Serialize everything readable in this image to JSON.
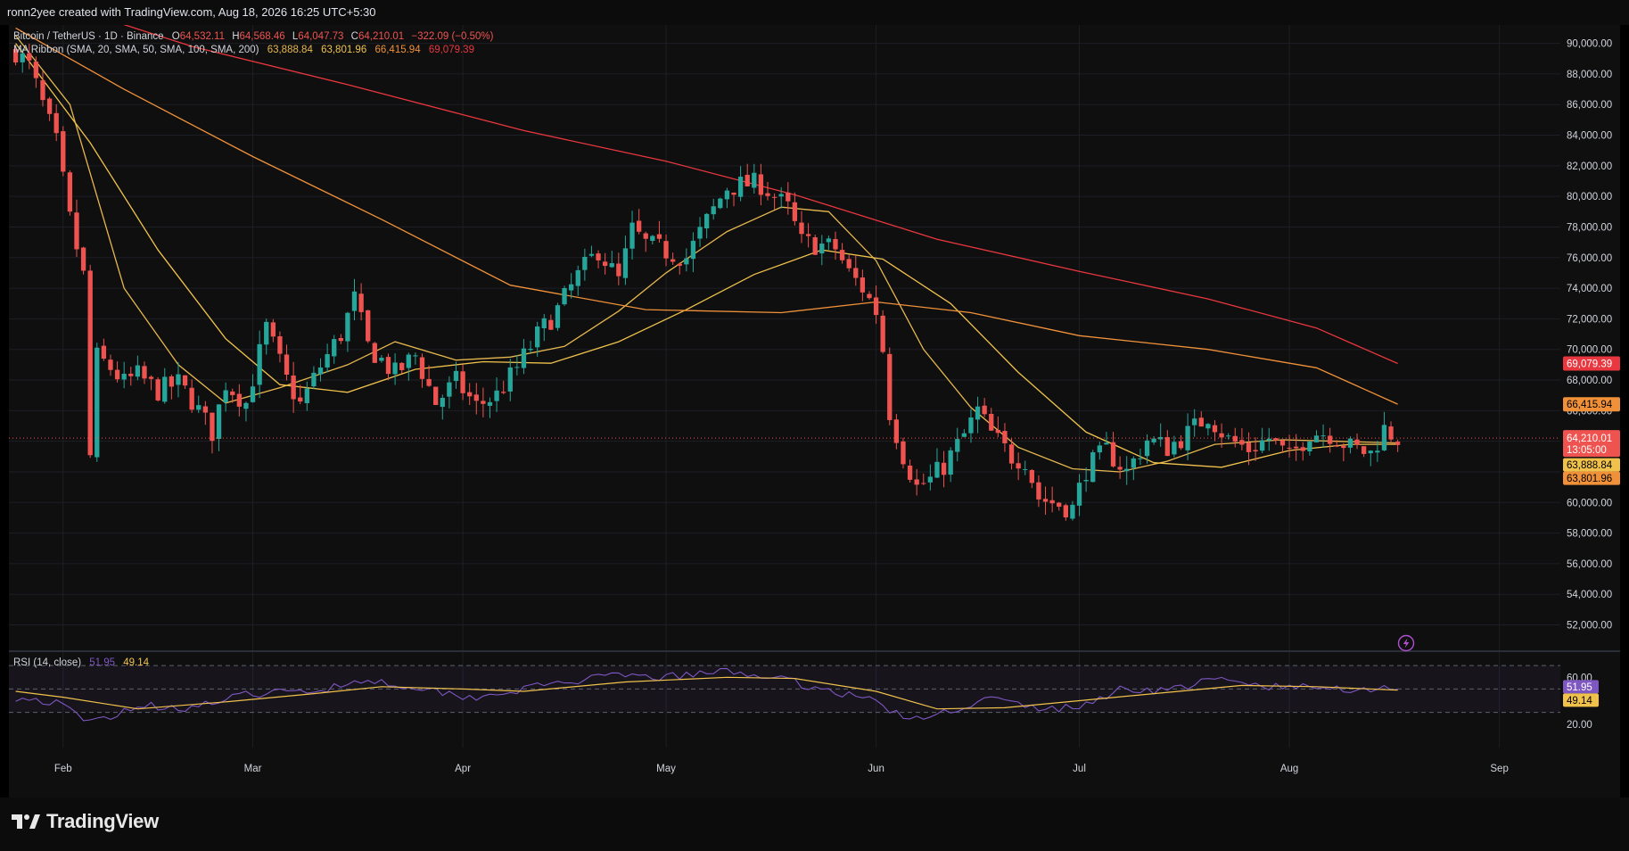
{
  "header": {
    "caption": "ronn2yee created with TradingView.com, Aug 18, 2026 16:25 UTC+5:30"
  },
  "footer": {
    "brand": "TradingView"
  },
  "colors": {
    "up": "#26a69a",
    "down": "#ef5350",
    "ma20": "#e6b74e",
    "ma50": "#f0c24c",
    "ma100": "#f0913a",
    "ma200": "#e8373e",
    "rsi": "#7e57c2",
    "rsi_ma": "#f0c24c",
    "background": "#0f0f0f"
  },
  "legend": {
    "symbol": "Bitcoin / TetherUS · 1D · Binance",
    "o_label": "O",
    "o": "64,532.11",
    "h_label": "H",
    "h": "64,568.46",
    "l_label": "L",
    "l": "64,047.73",
    "c_label": "C",
    "c": "64,210.01",
    "change": "−322.09 (−0.50%)",
    "ma_name": "MA Ribbon (SMA, 20, SMA, 50, SMA, 100, SMA, 200)",
    "ma20": "63,888.84",
    "ma50": "63,801.96",
    "ma100": "66,415.94",
    "ma200": "69,079.39"
  },
  "rsi_legend": {
    "name": "RSI (14, close)",
    "value": "51.95",
    "ma": "49.14"
  },
  "price_badges": {
    "ma200": "69,079.39",
    "ma100": "66,415.94",
    "last": "64,210.01",
    "countdown": "13:05:00",
    "ma20": "63,888.84",
    "ma50": "63,801.96"
  },
  "rsi_badges": {
    "rsi": "51.95",
    "ma": "49.14"
  },
  "chart_data": {
    "type": "candlestick",
    "symbol": "Bitcoin / TetherUS",
    "interval": "1D",
    "exchange": "Binance",
    "y_axis": {
      "ticks": [
        "90,000.00",
        "88,000.00",
        "86,000.00",
        "84,000.00",
        "82,000.00",
        "80,000.00",
        "78,000.00",
        "76,000.00",
        "74,000.00",
        "72,000.00",
        "70,000.00",
        "68,000.00",
        "66,000.00",
        "64,000.00",
        "62,000.00",
        "60,000.00",
        "58,000.00",
        "56,000.00",
        "54,000.00",
        "52,000.00"
      ],
      "range": [
        50400,
        91200
      ]
    },
    "x_axis": {
      "ticks": [
        "Feb",
        "Mar",
        "Apr",
        "May",
        "Jun",
        "Jul",
        "Aug",
        "Sep"
      ]
    },
    "price_close_trend": [
      [
        "2026-01-25",
        89500
      ],
      [
        "2026-01-27",
        88500
      ],
      [
        "2026-01-29",
        86000
      ],
      [
        "2026-01-31",
        83500
      ],
      [
        "2026-02-02",
        78500
      ],
      [
        "2026-02-04",
        74800
      ],
      [
        "2026-02-05",
        63000
      ],
      [
        "2026-02-06",
        69500
      ],
      [
        "2026-02-08",
        68800
      ],
      [
        "2026-02-10",
        67800
      ],
      [
        "2026-02-12",
        68300
      ],
      [
        "2026-02-15",
        67300
      ],
      [
        "2026-02-18",
        67800
      ],
      [
        "2026-02-20",
        66700
      ],
      [
        "2026-02-23",
        64600
      ],
      [
        "2026-02-25",
        67800
      ],
      [
        "2026-02-28",
        66500
      ],
      [
        "2026-03-03",
        71400
      ],
      [
        "2026-03-06",
        68000
      ],
      [
        "2026-03-08",
        66400
      ],
      [
        "2026-03-11",
        68900
      ],
      [
        "2026-03-14",
        71000
      ],
      [
        "2026-03-16",
        73300
      ],
      [
        "2026-03-18",
        70200
      ],
      [
        "2026-03-22",
        68400
      ],
      [
        "2026-03-25",
        69600
      ],
      [
        "2026-03-28",
        66500
      ],
      [
        "2026-03-31",
        67900
      ],
      [
        "2026-04-03",
        66300
      ],
      [
        "2026-04-06",
        67000
      ],
      [
        "2026-04-09",
        68800
      ],
      [
        "2026-04-12",
        70900
      ],
      [
        "2026-04-15",
        72600
      ],
      [
        "2026-04-18",
        74800
      ],
      [
        "2026-04-21",
        76500
      ],
      [
        "2026-04-24",
        74500
      ],
      [
        "2026-04-26",
        77800
      ],
      [
        "2026-04-28",
        76900
      ],
      [
        "2026-05-01",
        76400
      ],
      [
        "2026-05-04",
        76000
      ],
      [
        "2026-05-07",
        78400
      ],
      [
        "2026-05-10",
        80600
      ],
      [
        "2026-05-13",
        80800
      ],
      [
        "2026-05-15",
        80800
      ],
      [
        "2026-05-17",
        80000
      ],
      [
        "2026-05-19",
        79200
      ],
      [
        "2026-05-21",
        77000
      ],
      [
        "2026-05-24",
        76800
      ],
      [
        "2026-05-26",
        76600
      ],
      [
        "2026-05-28",
        75000
      ],
      [
        "2026-05-30",
        74000
      ],
      [
        "2026-06-01",
        72500
      ],
      [
        "2026-06-02",
        70000
      ],
      [
        "2026-06-03",
        65900
      ],
      [
        "2026-06-05",
        63100
      ],
      [
        "2026-06-07",
        61000
      ],
      [
        "2026-06-09",
        61500
      ],
      [
        "2026-06-11",
        62400
      ],
      [
        "2026-06-14",
        64400
      ],
      [
        "2026-06-16",
        66000
      ],
      [
        "2026-06-18",
        64500
      ],
      [
        "2026-06-21",
        63000
      ],
      [
        "2026-06-23",
        62800
      ],
      [
        "2026-06-25",
        60300
      ],
      [
        "2026-06-27",
        60000
      ],
      [
        "2026-06-30",
        59600
      ],
      [
        "2026-07-02",
        62200
      ],
      [
        "2026-07-05",
        63400
      ],
      [
        "2026-07-08",
        62000
      ],
      [
        "2026-07-11",
        64100
      ],
      [
        "2026-07-14",
        63600
      ],
      [
        "2026-07-17",
        64500
      ],
      [
        "2026-07-20",
        65700
      ],
      [
        "2026-07-23",
        64100
      ],
      [
        "2026-07-26",
        63500
      ],
      [
        "2026-07-29",
        64200
      ],
      [
        "2026-08-01",
        62900
      ],
      [
        "2026-08-04",
        64600
      ],
      [
        "2026-08-07",
        64500
      ],
      [
        "2026-08-10",
        63600
      ],
      [
        "2026-08-13",
        63200
      ],
      [
        "2026-08-15",
        64800
      ],
      [
        "2026-08-17",
        64200
      ]
    ],
    "moving_averages": [
      {
        "name": "SMA 20",
        "last": 63888.84,
        "color": "#e6b74e",
        "points": [
          [
            "2026-01-25",
            90500
          ],
          [
            "2026-02-02",
            86000
          ],
          [
            "2026-02-10",
            74000
          ],
          [
            "2026-02-18",
            69000
          ],
          [
            "2026-02-25",
            66500
          ],
          [
            "2026-03-05",
            67500
          ],
          [
            "2026-03-15",
            69000
          ],
          [
            "2026-03-22",
            70500
          ],
          [
            "2026-03-31",
            69300
          ],
          [
            "2026-04-08",
            69500
          ],
          [
            "2026-04-16",
            70200
          ],
          [
            "2026-04-24",
            72500
          ],
          [
            "2026-05-01",
            75000
          ],
          [
            "2026-05-10",
            77700
          ],
          [
            "2026-05-18",
            79300
          ],
          [
            "2026-05-25",
            79000
          ],
          [
            "2026-06-01",
            75800
          ],
          [
            "2026-06-08",
            70000
          ],
          [
            "2026-06-15",
            66200
          ],
          [
            "2026-06-22",
            63600
          ],
          [
            "2026-06-30",
            62200
          ],
          [
            "2026-07-07",
            62000
          ],
          [
            "2026-07-14",
            62700
          ],
          [
            "2026-07-21",
            63800
          ],
          [
            "2026-07-31",
            64100
          ],
          [
            "2026-08-08",
            64000
          ],
          [
            "2026-08-17",
            63890
          ]
        ]
      },
      {
        "name": "SMA 50",
        "last": 63801.96,
        "color": "#f0c24c",
        "points": [
          [
            "2026-01-25",
            90000
          ],
          [
            "2026-02-05",
            83500
          ],
          [
            "2026-02-15",
            76500
          ],
          [
            "2026-02-25",
            70700
          ],
          [
            "2026-03-05",
            67700
          ],
          [
            "2026-03-15",
            67200
          ],
          [
            "2026-03-25",
            68700
          ],
          [
            "2026-04-04",
            69200
          ],
          [
            "2026-04-14",
            69100
          ],
          [
            "2026-04-24",
            70500
          ],
          [
            "2026-05-04",
            72600
          ],
          [
            "2026-05-14",
            74900
          ],
          [
            "2026-05-24",
            76500
          ],
          [
            "2026-06-02",
            75900
          ],
          [
            "2026-06-12",
            73000
          ],
          [
            "2026-06-22",
            68500
          ],
          [
            "2026-07-02",
            64600
          ],
          [
            "2026-07-12",
            62600
          ],
          [
            "2026-07-22",
            62300
          ],
          [
            "2026-08-01",
            63400
          ],
          [
            "2026-08-10",
            63800
          ],
          [
            "2026-08-17",
            63800
          ]
        ]
      },
      {
        "name": "SMA 100",
        "last": 66415.94,
        "color": "#f0913a",
        "points": [
          [
            "2026-01-25",
            91000
          ],
          [
            "2026-02-10",
            87000
          ],
          [
            "2026-03-01",
            82600
          ],
          [
            "2026-03-20",
            78500
          ],
          [
            "2026-04-08",
            74200
          ],
          [
            "2026-04-28",
            72600
          ],
          [
            "2026-05-18",
            72400
          ],
          [
            "2026-06-01",
            73100
          ],
          [
            "2026-06-15",
            72400
          ],
          [
            "2026-07-01",
            70900
          ],
          [
            "2026-07-20",
            70000
          ],
          [
            "2026-08-05",
            68800
          ],
          [
            "2026-08-17",
            66420
          ]
        ]
      },
      {
        "name": "SMA 200",
        "last": 69079.39,
        "color": "#e8373e",
        "points": [
          [
            "2026-02-01",
            92500
          ],
          [
            "2026-02-20",
            89800
          ],
          [
            "2026-03-15",
            87300
          ],
          [
            "2026-04-10",
            84300
          ],
          [
            "2026-05-01",
            82300
          ],
          [
            "2026-05-20",
            80100
          ],
          [
            "2026-06-10",
            77200
          ],
          [
            "2026-07-01",
            75100
          ],
          [
            "2026-07-20",
            73300
          ],
          [
            "2026-08-05",
            71400
          ],
          [
            "2026-08-17",
            69080
          ]
        ]
      }
    ],
    "rsi": {
      "name": "RSI (14, close)",
      "period": 14,
      "value": 51.95,
      "ma_value": 49.14,
      "y_ticks": [
        "60.00",
        "20.00"
      ],
      "bands": [
        70,
        50,
        30
      ],
      "rsi_points": [
        [
          "2026-01-25",
          43
        ],
        [
          "2026-01-31",
          38
        ],
        [
          "2026-02-05",
          21
        ],
        [
          "2026-02-12",
          36
        ],
        [
          "2026-02-20",
          34
        ],
        [
          "2026-03-01",
          46
        ],
        [
          "2026-03-10",
          48
        ],
        [
          "2026-03-17",
          58
        ],
        [
          "2026-03-25",
          52
        ],
        [
          "2026-04-02",
          43
        ],
        [
          "2026-04-08",
          48
        ],
        [
          "2026-04-16",
          56
        ],
        [
          "2026-04-24",
          61
        ],
        [
          "2026-05-01",
          60
        ],
        [
          "2026-05-10",
          65
        ],
        [
          "2026-05-16",
          61
        ],
        [
          "2026-05-24",
          50
        ],
        [
          "2026-06-01",
          40
        ],
        [
          "2026-06-06",
          22
        ],
        [
          "2026-06-12",
          32
        ],
        [
          "2026-06-18",
          42
        ],
        [
          "2026-06-25",
          33
        ],
        [
          "2026-07-01",
          34
        ],
        [
          "2026-07-07",
          50
        ],
        [
          "2026-07-14",
          49
        ],
        [
          "2026-07-21",
          58
        ],
        [
          "2026-07-29",
          52
        ],
        [
          "2026-08-05",
          51
        ],
        [
          "2026-08-12",
          50
        ],
        [
          "2026-08-17",
          52
        ]
      ],
      "ma_points": [
        [
          "2026-01-25",
          48
        ],
        [
          "2026-02-01",
          43
        ],
        [
          "2026-02-12",
          33
        ],
        [
          "2026-02-25",
          39
        ],
        [
          "2026-03-10",
          46
        ],
        [
          "2026-03-20",
          52
        ],
        [
          "2026-04-01",
          50
        ],
        [
          "2026-04-10",
          48
        ],
        [
          "2026-04-25",
          56
        ],
        [
          "2026-05-10",
          60
        ],
        [
          "2026-05-20",
          59
        ],
        [
          "2026-06-01",
          48
        ],
        [
          "2026-06-10",
          33
        ],
        [
          "2026-06-20",
          34
        ],
        [
          "2026-07-01",
          40
        ],
        [
          "2026-07-12",
          46
        ],
        [
          "2026-07-25",
          53
        ],
        [
          "2026-08-05",
          52
        ],
        [
          "2026-08-17",
          49
        ]
      ]
    }
  }
}
